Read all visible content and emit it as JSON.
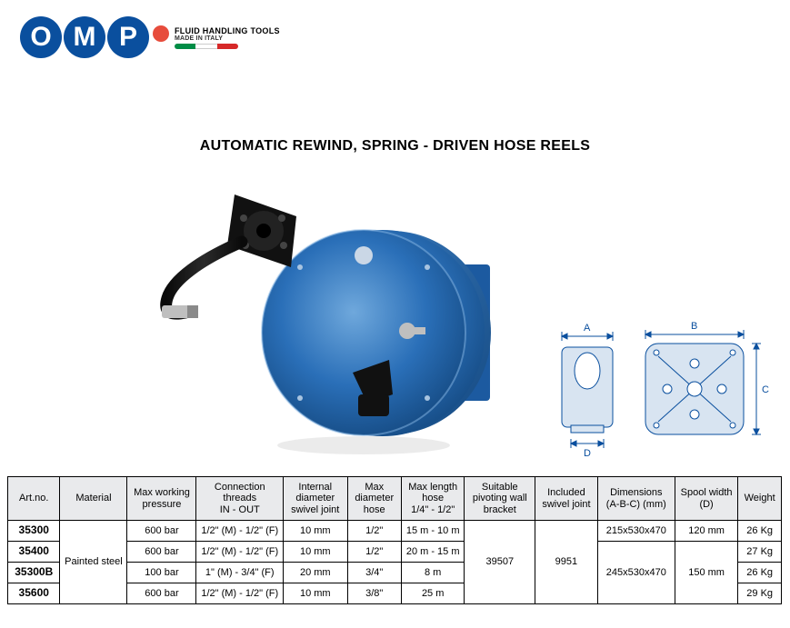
{
  "logo": {
    "letters": [
      "O",
      "M",
      "P"
    ],
    "sub": "FLUID HANDLING TOOLS",
    "tag": "MADE IN ITALY"
  },
  "title": "AUTOMATIC REWIND, SPRING - DRIVEN HOSE REELS",
  "productColors": {
    "body": "#2a6fb8",
    "bodyLight": "#4a8dd0",
    "bodyDark": "#1a4a7e",
    "hose": "#1a1a1a",
    "knob": "#202020",
    "fitting": "#b8b8b8",
    "mount": "#1c1c1c"
  },
  "diagram": {
    "labels": {
      "A": "A",
      "B": "B",
      "C": "C",
      "D": "D"
    },
    "stroke": "#0a4f9e",
    "fill": "#d8e4f1",
    "text": "#0a4f9e"
  },
  "table": {
    "headers": {
      "artno": "Art.no.",
      "material": "Material",
      "pressure": "Max working\npressure",
      "threads": "Connection\nthreads\nIN - OUT",
      "intdia": "Internal\ndiameter\nswivel joint",
      "maxdh": "Max\ndiameter\nhose",
      "maxlh": "Max length\nhose\n1/4\" - 1/2\"",
      "bracket": "Suitable\npivoting wall\nbracket",
      "swivel": "Included\nswivel joint",
      "dims": "Dimensions\n(A-B-C) (mm)",
      "spool": "Spool width\n(D)",
      "weight": "Weight"
    },
    "shared": {
      "material": "Painted steel",
      "bracket": "39507",
      "swivel": "9951"
    },
    "rows": [
      {
        "artno": "35300",
        "pressure": "600 bar",
        "threads": "1/2\" (M) - 1/2\" (F)",
        "intdia": "10 mm",
        "maxdh": "1/2\"",
        "maxlh": "15 m - 10 m",
        "dims": "215x530x470",
        "spool": "120 mm",
        "weight": "26 Kg"
      },
      {
        "artno": "35400",
        "pressure": "600 bar",
        "threads": "1/2\" (M) - 1/2\" (F)",
        "intdia": "10 mm",
        "maxdh": "1/2\"",
        "maxlh": "20 m - 15 m",
        "dims_group": "245x530x470",
        "spool_group": "150 mm",
        "weight": "27 Kg"
      },
      {
        "artno": "35300B",
        "pressure": "100 bar",
        "threads": "1\" (M) - 3/4\" (F)",
        "intdia": "20 mm",
        "maxdh": "3/4\"",
        "maxlh": "8 m",
        "weight": "26 Kg"
      },
      {
        "artno": "35600",
        "pressure": "600 bar",
        "threads": "1/2\" (M) - 1/2\" (F)",
        "intdia": "10 mm",
        "maxdh": "3/8\"",
        "maxlh": "25 m",
        "weight": "29 Kg"
      }
    ]
  }
}
